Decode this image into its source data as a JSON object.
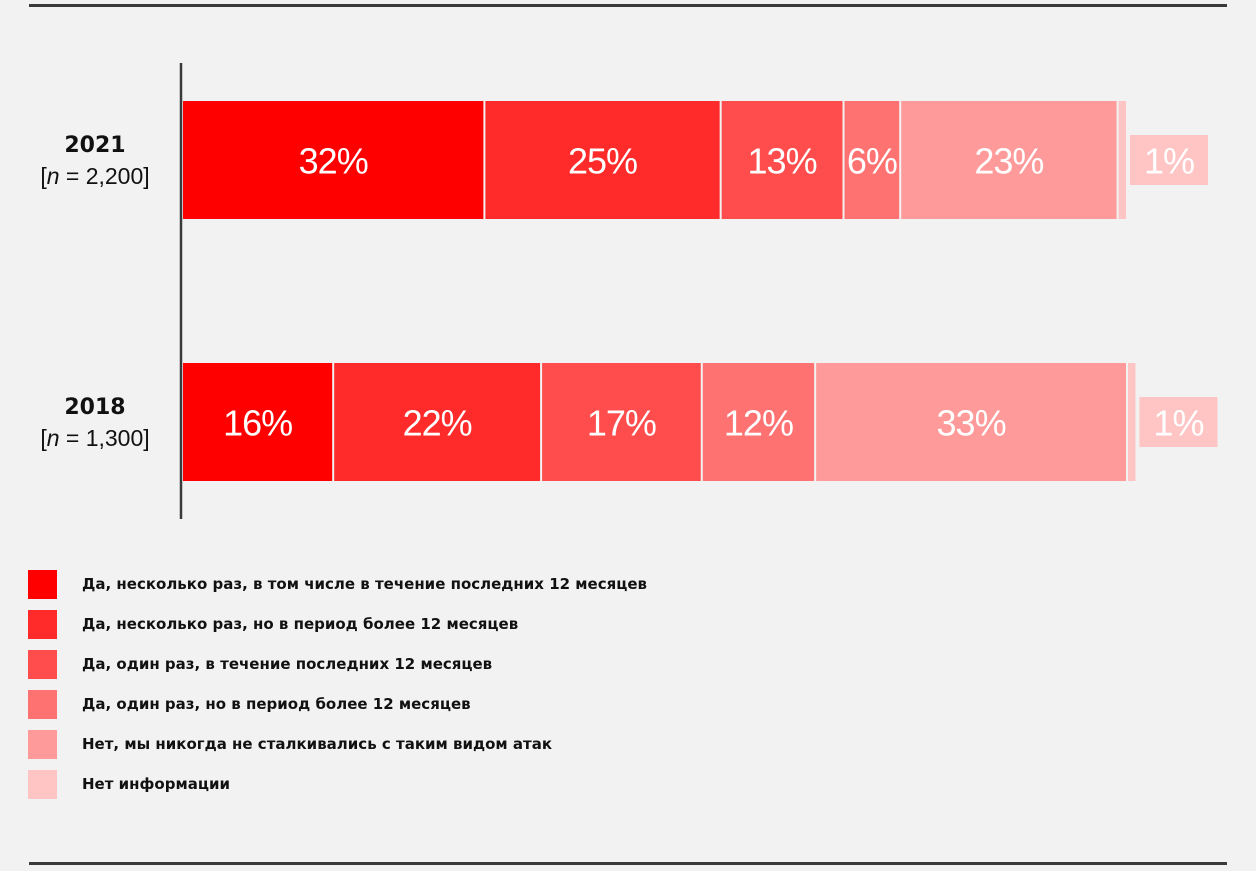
{
  "chart_data": {
    "type": "bar",
    "orientation": "horizontal",
    "stacked": true,
    "value_unit": "%",
    "categories": [
      {
        "year": "2021",
        "n_label": "[n = 2,200]",
        "n_prefix": "[",
        "n_var": "n",
        "n_value": " = 2,200]"
      },
      {
        "year": "2018",
        "n_label": "[n = 1,300]",
        "n_prefix": "[",
        "n_var": "n",
        "n_value": " = 1,300]"
      }
    ],
    "series": [
      {
        "name": "Да, несколько раз, в том числе в течение последних 12 месяцев",
        "color": "#ff0000",
        "values": [
          32,
          16
        ],
        "labels": [
          "32%",
          "16%"
        ]
      },
      {
        "name": "Да, несколько раз, но в период более 12 месяцев",
        "color": "#ff2a2a",
        "values": [
          25,
          22
        ],
        "labels": [
          "25%",
          "22%"
        ]
      },
      {
        "name": "Да, один раз, в течение последних 12 месяцев",
        "color": "#ff4d4d",
        "values": [
          13,
          17
        ],
        "labels": [
          "13%",
          "17%"
        ]
      },
      {
        "name": "Да, один раз, но в период более 12 месяцев",
        "color": "#ff7272",
        "values": [
          6,
          12
        ],
        "labels": [
          "6%",
          "12%"
        ]
      },
      {
        "name": "Нет, мы никогда не сталкивались с таким видом атак",
        "color": "#ff9a9a",
        "values": [
          23,
          33
        ],
        "labels": [
          "23%",
          "33%"
        ]
      },
      {
        "name": "Нет информации",
        "color": "#ffc4c4",
        "values": [
          1,
          1
        ],
        "labels": [
          "1%",
          "1%"
        ]
      }
    ],
    "legend_position": "bottom-left",
    "grid": false
  }
}
